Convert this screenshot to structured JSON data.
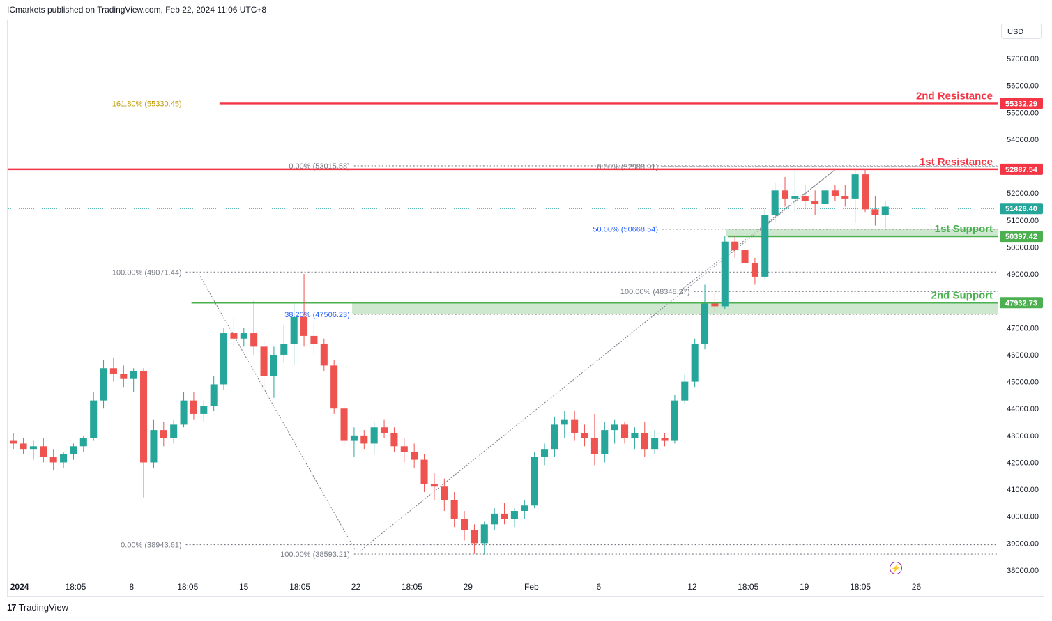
{
  "header": {
    "publisher": "ICmarkets published on TradingView.com, Feb 22, 2024 11:06 UTC+8"
  },
  "footer": {
    "brand": "TradingView",
    "brand_icon": "tradingview-logo-icon"
  },
  "toolbar": {
    "currency": "USD"
  },
  "colors": {
    "up": "#26a69a",
    "down": "#ef5350",
    "resistance": "#f23645",
    "support": "#4caf50",
    "fib": "#787b86",
    "fib_ext": "#c29a00",
    "fib_mid": "#2962ff"
  },
  "chart_data": {
    "type": "candlestick",
    "y_axis": {
      "min": 37600,
      "max": 57800,
      "ticks": [
        38000,
        39000,
        40000,
        41000,
        42000,
        43000,
        44000,
        45000,
        46000,
        47000,
        48000,
        49000,
        50000,
        51000,
        52000,
        53000,
        54000,
        55000,
        56000,
        57000
      ],
      "tick_labels": [
        "38000.00",
        "39000.00",
        "40000.00",
        "41000.00",
        "42000.00",
        "43000.00",
        "44000.00",
        "45000.00",
        "46000.00",
        "47000.00",
        "48000.00",
        "49000.00",
        "50000.00",
        "51000.00",
        "52000.00",
        "53000.00",
        "54000.00",
        "55000.00",
        "56000.00",
        "57000.00"
      ]
    },
    "x_axis": {
      "labels": [
        {
          "label": "2024",
          "bold": true,
          "t": 0.6
        },
        {
          "label": "18:05",
          "t": 3.6
        },
        {
          "label": "8",
          "t": 6.6
        },
        {
          "label": "18:05",
          "t": 9.6
        },
        {
          "label": "15",
          "t": 12.6
        },
        {
          "label": "18:05",
          "t": 15.6
        },
        {
          "label": "22",
          "t": 18.6
        },
        {
          "label": "18:05",
          "t": 21.6
        },
        {
          "label": "29",
          "t": 24.6
        },
        {
          "label": "Feb",
          "t": 28.0
        },
        {
          "label": "6",
          "t": 31.6
        },
        {
          "label": "12",
          "t": 36.6
        },
        {
          "label": "18:05",
          "t": 39.6
        },
        {
          "label": "19",
          "t": 42.6
        },
        {
          "label": "18:05",
          "t": 45.6
        },
        {
          "label": "26",
          "t": 48.6
        }
      ]
    },
    "candles": [
      [
        42800,
        43100,
        42500,
        42700
      ],
      [
        42700,
        42900,
        42300,
        42500
      ],
      [
        42500,
        42800,
        42100,
        42600
      ],
      [
        42600,
        42900,
        42000,
        42200
      ],
      [
        42200,
        42500,
        41700,
        42000
      ],
      [
        42000,
        42400,
        41800,
        42300
      ],
      [
        42300,
        42700,
        42100,
        42600
      ],
      [
        42600,
        43000,
        42400,
        42900
      ],
      [
        42900,
        44600,
        42800,
        44300
      ],
      [
        44300,
        45800,
        44000,
        45500
      ],
      [
        45500,
        45900,
        45000,
        45300
      ],
      [
        45300,
        45600,
        44800,
        45100
      ],
      [
        45100,
        45500,
        44600,
        45400
      ],
      [
        45400,
        45500,
        40700,
        42000
      ],
      [
        42000,
        43600,
        41800,
        43200
      ],
      [
        43200,
        43500,
        42600,
        42900
      ],
      [
        42900,
        43600,
        42700,
        43400
      ],
      [
        43400,
        44600,
        43300,
        44300
      ],
      [
        44300,
        44600,
        43600,
        43800
      ],
      [
        43800,
        44300,
        43500,
        44100
      ],
      [
        44100,
        45200,
        43900,
        44900
      ],
      [
        44900,
        47000,
        44700,
        46800
      ],
      [
        46800,
        47400,
        46300,
        46600
      ],
      [
        46600,
        47000,
        46300,
        46800
      ],
      [
        46800,
        48000,
        46000,
        46300
      ],
      [
        46300,
        46600,
        44800,
        45200
      ],
      [
        45200,
        46300,
        44400,
        46000
      ],
      [
        46000,
        47100,
        45700,
        46400
      ],
      [
        46400,
        47900,
        45600,
        47400
      ],
      [
        47400,
        49000,
        46300,
        46700
      ],
      [
        46700,
        47200,
        46000,
        46400
      ],
      [
        46400,
        46600,
        45400,
        45600
      ],
      [
        45600,
        45800,
        43800,
        44000
      ],
      [
        44000,
        44200,
        42500,
        42800
      ],
      [
        42800,
        43300,
        42200,
        43000
      ],
      [
        43000,
        43200,
        42500,
        42700
      ],
      [
        42700,
        43500,
        42300,
        43300
      ],
      [
        43300,
        43600,
        42900,
        43100
      ],
      [
        43100,
        43300,
        42400,
        42600
      ],
      [
        42600,
        42900,
        42000,
        42400
      ],
      [
        42400,
        42700,
        41800,
        42100
      ],
      [
        42100,
        42300,
        40900,
        41200
      ],
      [
        41200,
        41600,
        40600,
        41100
      ],
      [
        41100,
        41400,
        40200,
        40600
      ],
      [
        40600,
        40900,
        39600,
        39900
      ],
      [
        39900,
        40200,
        39100,
        39500
      ],
      [
        39500,
        39700,
        38600,
        39000
      ],
      [
        39000,
        39800,
        38590,
        39700
      ],
      [
        39700,
        40300,
        39500,
        40100
      ],
      [
        40100,
        40500,
        39700,
        39900
      ],
      [
        39900,
        40300,
        39600,
        40200
      ],
      [
        40200,
        40600,
        39900,
        40400
      ],
      [
        40400,
        42400,
        40300,
        42200
      ],
      [
        42200,
        42700,
        41900,
        42500
      ],
      [
        42500,
        43700,
        42200,
        43400
      ],
      [
        43400,
        43900,
        42900,
        43600
      ],
      [
        43600,
        43900,
        42800,
        43100
      ],
      [
        43100,
        43400,
        42600,
        42900
      ],
      [
        42900,
        43800,
        41900,
        42300
      ],
      [
        42300,
        43500,
        42000,
        43200
      ],
      [
        43200,
        43600,
        42700,
        43400
      ],
      [
        43400,
        43500,
        42700,
        42900
      ],
      [
        42900,
        43300,
        42500,
        43100
      ],
      [
        43100,
        43500,
        42200,
        42500
      ],
      [
        42500,
        43200,
        42300,
        42900
      ],
      [
        42900,
        43100,
        42600,
        42800
      ],
      [
        42800,
        44500,
        42700,
        44300
      ],
      [
        44300,
        45300,
        44200,
        45000
      ],
      [
        45000,
        46600,
        44800,
        46400
      ],
      [
        46400,
        48600,
        46200,
        47900
      ],
      [
        47900,
        48300,
        47600,
        47800
      ],
      [
        47800,
        50400,
        47700,
        50200
      ],
      [
        50200,
        50400,
        49600,
        49900
      ],
      [
        49900,
        50300,
        49100,
        49400
      ],
      [
        49400,
        49600,
        48600,
        48900
      ],
      [
        48900,
        51400,
        48800,
        51200
      ],
      [
        51200,
        52400,
        50900,
        52100
      ],
      [
        52100,
        52600,
        51500,
        51800
      ],
      [
        51800,
        52900,
        51300,
        51900
      ],
      [
        51900,
        52300,
        51400,
        51700
      ],
      [
        51700,
        52100,
        51200,
        51600
      ],
      [
        51600,
        52300,
        51400,
        52100
      ],
      [
        52100,
        52300,
        51700,
        51900
      ],
      [
        51900,
        52300,
        51500,
        51800
      ],
      [
        51800,
        52900,
        50900,
        52700
      ],
      [
        52700,
        52900,
        51300,
        51400
      ],
      [
        51400,
        51900,
        50800,
        51200
      ],
      [
        51200,
        51700,
        50700,
        51500
      ]
    ],
    "current_price": 51428.4,
    "price_lines": [
      {
        "name": "2nd Resistance",
        "value": 55332.29,
        "label": "55332.29",
        "type": "resistance"
      },
      {
        "name": "1st Resistance",
        "value": 52887.54,
        "label": "52887.54",
        "type": "resistance"
      },
      {
        "name": "1st Support",
        "value": 50397.42,
        "label": "50397.42",
        "type": "support"
      },
      {
        "name": "2nd Support",
        "value": 47932.73,
        "label": "47932.73",
        "type": "support"
      }
    ],
    "line_titles": [
      "2nd Resistance",
      "1st Resistance",
      "1st Support",
      "2nd Support"
    ],
    "current_price_label": "51428.40",
    "support_zones": [
      {
        "from": 50397.42,
        "to": 50668.54,
        "t_start": 38.4
      },
      {
        "from": 47506.23,
        "to": 47932.73,
        "t_start": 18.4
      }
    ],
    "fib_levels": [
      {
        "label": "161.80% (55330.45)",
        "value": 55330.45,
        "t_start": 9.5,
        "style": "ext"
      },
      {
        "label": "0.00% (53015.58)",
        "value": 53015.58,
        "t_start": 18.5,
        "style": "dotted"
      },
      {
        "label": "0.00% (52988.91)",
        "value": 52988.91,
        "t_start": 35.0,
        "style": "dotted"
      },
      {
        "label": "50.00% (50668.54)",
        "value": 50668.54,
        "t_start": 35.0,
        "style": "mid"
      },
      {
        "label": "100.00% (49071.44)",
        "value": 49071.44,
        "t_start": 9.5,
        "style": "dotted"
      },
      {
        "label": "100.00% (48348.27)",
        "value": 48348.27,
        "t_start": 36.7,
        "style": "dotted"
      },
      {
        "label": "38.20% (47506.23)",
        "value": 47506.23,
        "t_start": 18.5,
        "style": "mid"
      },
      {
        "label": "0.00% (38943.61)",
        "value": 38943.61,
        "t_start": 9.5,
        "style": "dotted"
      },
      {
        "label": "100.00% (38593.21)",
        "value": 38593.21,
        "t_start": 18.5,
        "style": "dotted"
      }
    ],
    "trend_lines": [
      {
        "t1": 10.2,
        "v1": 49000,
        "t2": 18.6,
        "v2": 38700
      },
      {
        "t1": 18.8,
        "v1": 38700,
        "t2": 44.3,
        "v2": 52900
      },
      {
        "t1": 36.0,
        "v1": 48400,
        "t2": 44.3,
        "v2": 52900
      }
    ],
    "grid": false,
    "replay_icon": "lightning-icon"
  }
}
